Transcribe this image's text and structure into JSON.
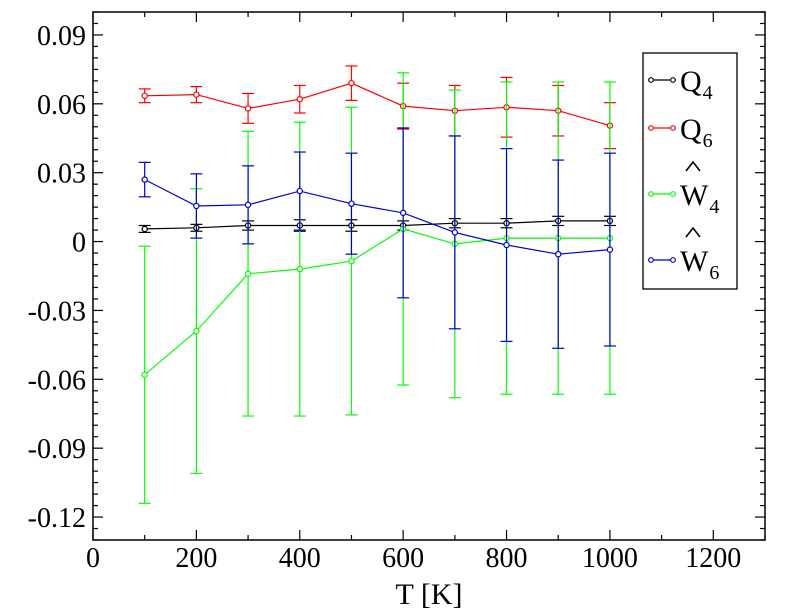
{
  "chart_data": {
    "type": "line",
    "title": "",
    "xlabel": "T [K]",
    "ylabel": "",
    "xlim": [
      0,
      1300
    ],
    "ylim": [
      -0.13,
      0.1
    ],
    "xticks": [
      0,
      200,
      400,
      600,
      800,
      1000,
      1200
    ],
    "yticks": [
      -0.12,
      -0.09,
      -0.06,
      -0.03,
      0,
      0.03,
      0.06,
      0.09
    ],
    "xtick_labels": [
      "0",
      "200",
      "400",
      "600",
      "800",
      "1000",
      "1200"
    ],
    "ytick_labels": [
      "-0.12",
      "-0.09",
      "-0.06",
      "-0.03",
      "0",
      "0.03",
      "0.06",
      "0.09"
    ],
    "grid": false,
    "legend_position": "top-right",
    "x": [
      100,
      200,
      300,
      400,
      500,
      600,
      700,
      800,
      900,
      1000
    ],
    "series": [
      {
        "name": "Q4",
        "label_main": "Q",
        "label_sub": "4",
        "hat": false,
        "color": "#000000",
        "values": [
          0.0055,
          0.006,
          0.007,
          0.007,
          0.007,
          0.007,
          0.008,
          0.008,
          0.009,
          0.009
        ],
        "errors": [
          0.0015,
          0.0015,
          0.002,
          0.0025,
          0.0025,
          0.002,
          0.002,
          0.002,
          0.002,
          0.002
        ]
      },
      {
        "name": "Q6",
        "label_main": "Q",
        "label_sub": "6",
        "hat": false,
        "color": "#ff0000",
        "values": [
          0.0635,
          0.064,
          0.058,
          0.062,
          0.069,
          0.059,
          0.057,
          0.0585,
          0.057,
          0.0505
        ],
        "errors": [
          0.003,
          0.0035,
          0.0065,
          0.006,
          0.0075,
          0.01,
          0.011,
          0.013,
          0.011,
          0.01
        ]
      },
      {
        "name": "W4",
        "label_main": "W",
        "label_sub": "4",
        "hat": true,
        "color": "#00ff00",
        "values": [
          -0.058,
          -0.039,
          -0.014,
          -0.012,
          -0.0085,
          0.0055,
          -0.001,
          0.0015,
          0.0015,
          0.0015
        ],
        "errors": [
          0.056,
          0.062,
          0.062,
          0.064,
          0.067,
          0.068,
          0.067,
          0.068,
          0.068,
          0.068
        ]
      },
      {
        "name": "W6",
        "label_main": "W",
        "label_sub": "6",
        "hat": true,
        "color": "#0000cc",
        "values": [
          0.027,
          0.0155,
          0.016,
          0.022,
          0.0165,
          0.0125,
          0.004,
          -0.0015,
          -0.0055,
          -0.0035
        ],
        "errors": [
          0.0075,
          0.014,
          0.017,
          0.017,
          0.022,
          0.037,
          0.042,
          0.042,
          0.041,
          0.042
        ]
      }
    ]
  }
}
